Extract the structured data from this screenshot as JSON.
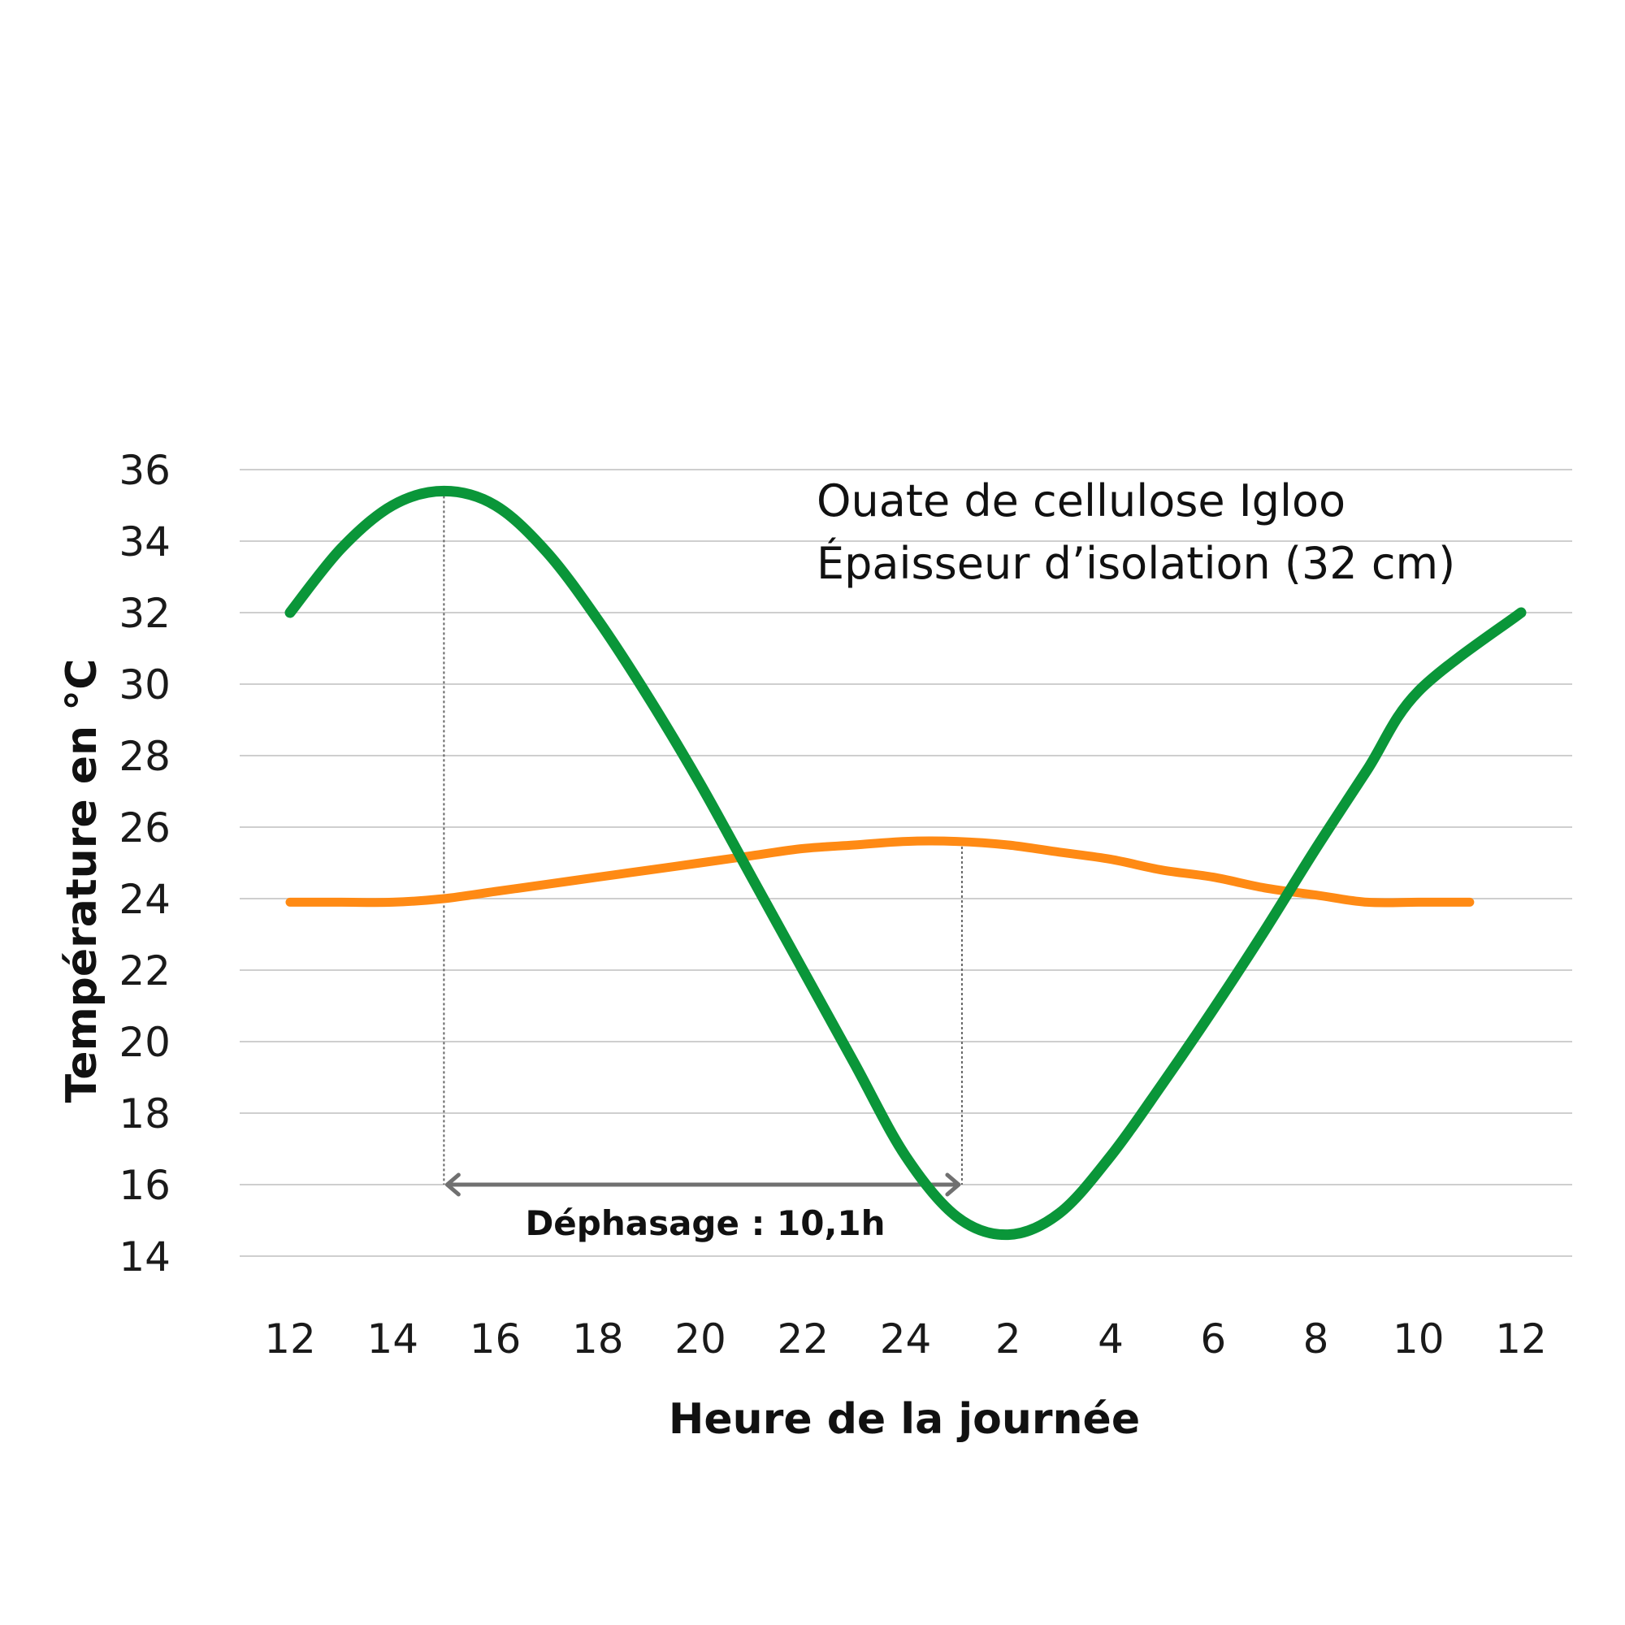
{
  "chart_data": {
    "type": "line",
    "xlabel": "Heure de la journée",
    "ylabel": "Température en °C",
    "x_tick_labels": [
      "12",
      "14",
      "16",
      "18",
      "20",
      "22",
      "24",
      "2",
      "4",
      "6",
      "8",
      "10",
      "12"
    ],
    "y_ticks": [
      14,
      16,
      18,
      20,
      22,
      24,
      26,
      28,
      30,
      32,
      34,
      36
    ],
    "ylim": [
      14,
      36
    ],
    "grid": true,
    "annotation_lines": [
      "Ouate de cellulose Igloo",
      "Épaisseur d’isolation (32 cm)"
    ],
    "phase_shift_label": "Déphasage : 10,1h",
    "phase_shift_start_hour": 15,
    "phase_shift_end_hour": 25.1,
    "series": [
      {
        "color": "#0a9639",
        "x": [
          12,
          13,
          14,
          15,
          16,
          17,
          18,
          19,
          20,
          21,
          22,
          23,
          24,
          25,
          26,
          27,
          28,
          29,
          30,
          31,
          32,
          33,
          34,
          35,
          36
        ],
        "values": [
          32.0,
          33.8,
          35.0,
          35.4,
          35.0,
          33.7,
          31.8,
          29.6,
          27.2,
          24.6,
          22.0,
          19.4,
          16.8,
          15.1,
          14.6,
          15.2,
          16.8,
          18.8,
          20.9,
          23.1,
          25.4,
          27.6,
          29.8,
          32.0,
          32.0
        ]
      },
      {
        "color": "#ff8a14",
        "x": [
          12,
          13,
          14,
          15,
          16,
          17,
          18,
          19,
          20,
          21,
          22,
          23,
          24,
          25,
          26,
          27,
          28,
          29,
          30,
          31,
          32,
          33,
          34,
          35
        ],
        "values": [
          23.9,
          23.9,
          23.9,
          24.0,
          24.2,
          24.4,
          24.6,
          24.8,
          25.0,
          25.2,
          25.4,
          25.5,
          25.6,
          25.6,
          25.5,
          25.3,
          25.1,
          24.8,
          24.6,
          24.3,
          24.1,
          23.9,
          23.9,
          23.9
        ]
      }
    ]
  }
}
